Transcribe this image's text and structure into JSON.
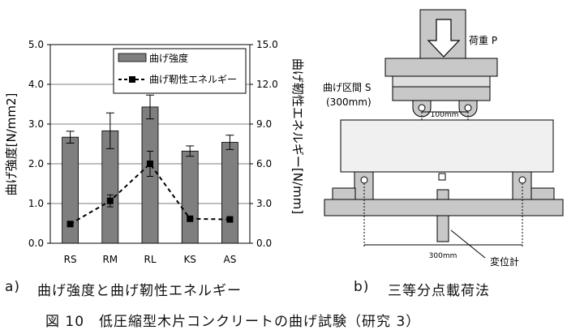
{
  "chart_data": {
    "type": "bar",
    "categories": [
      "RS",
      "RM",
      "RL",
      "KS",
      "AS"
    ],
    "series": [
      {
        "name": "曲げ強度",
        "axis": "left",
        "kind": "bar",
        "values": [
          2.67,
          2.83,
          3.43,
          2.32,
          2.54
        ],
        "error": [
          0.15,
          0.45,
          0.3,
          0.13,
          0.18
        ]
      },
      {
        "name": "曲げ靭性エネルギー",
        "axis": "right",
        "kind": "line",
        "values": [
          1.45,
          3.2,
          6.0,
          1.85,
          1.8
        ],
        "error": [
          0.0,
          0.45,
          0.95,
          0.0,
          0.0
        ]
      }
    ],
    "ylabel": "曲げ強度[N/mm2]",
    "y2label": "曲げ靭性エネルギー[N/mm]",
    "ylim": [
      0,
      5
    ],
    "yticks": [
      "0.0",
      "1.0",
      "2.0",
      "3.0",
      "4.0",
      "5.0"
    ],
    "y2lim": [
      0,
      15
    ],
    "y2ticks": [
      "0.0",
      "3.0",
      "6.0",
      "9.0",
      "12.0",
      "15.0"
    ],
    "legend": "top-right",
    "colors": {
      "bar": "#7f7f7f",
      "line": "#000000"
    }
  },
  "diagram": {
    "load_label": "荷重 P",
    "span_label_line1": "曲げ区間 S",
    "span_label_line2": "(300mm)",
    "inner_dim": "100mm",
    "outer_dim": "300mm",
    "gauge_label": "変位計"
  },
  "captions": {
    "a_mark": "a)",
    "a_text": "曲げ強度と曲げ靭性エネルギー",
    "b_mark": "b)",
    "b_text": "三等分点載荷法",
    "figure": "図 10　低圧縮型木片コンクリートの曲げ試験（研究 3）"
  }
}
